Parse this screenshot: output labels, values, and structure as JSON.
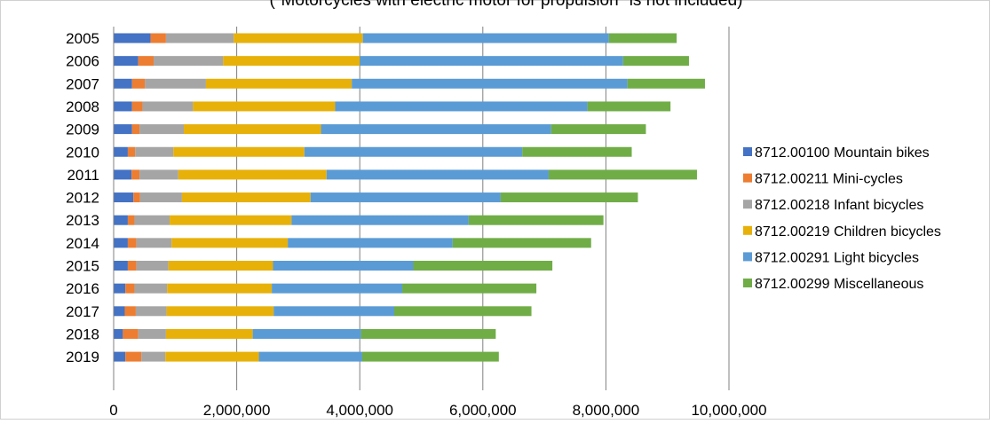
{
  "chart_data": {
    "type": "bar",
    "orientation": "horizontal",
    "stacked": true,
    "title": "(\"Motorcycles with electric motor for propulsion\" is not included)",
    "xlabel": "",
    "ylabel": "",
    "xlim": [
      0,
      10000000
    ],
    "x_ticks": [
      "0",
      "2,000,000",
      "4,000,000",
      "6,000,000",
      "8,000,000",
      "10,000,000"
    ],
    "grid": "vertical",
    "legend_position": "right",
    "categories": [
      "2005",
      "2006",
      "2007",
      "2008",
      "2009",
      "2010",
      "2011",
      "2012",
      "2013",
      "2014",
      "2015",
      "2016",
      "2017",
      "2018",
      "2019"
    ],
    "series": [
      {
        "name": "8712.00100 Mountain bikes",
        "color": "#4472C4",
        "values": [
          600000,
          400000,
          300000,
          300000,
          300000,
          230000,
          290000,
          320000,
          230000,
          230000,
          230000,
          190000,
          180000,
          150000,
          190000
        ]
      },
      {
        "name": "8712.00211 Mini-cycles",
        "color": "#ED7D31",
        "values": [
          250000,
          250000,
          210000,
          170000,
          120000,
          120000,
          130000,
          110000,
          110000,
          140000,
          140000,
          150000,
          180000,
          250000,
          260000
        ]
      },
      {
        "name": "8712.00218 Infant bicycles",
        "color": "#A5A5A5",
        "values": [
          1100000,
          1130000,
          990000,
          820000,
          720000,
          620000,
          630000,
          680000,
          570000,
          570000,
          520000,
          530000,
          500000,
          450000,
          390000
        ]
      },
      {
        "name": "8712.00219 Children bicycles",
        "color": "#E7B10A",
        "values": [
          2100000,
          2220000,
          2370000,
          2310000,
          2230000,
          2130000,
          2410000,
          2090000,
          1980000,
          1890000,
          1700000,
          1700000,
          1740000,
          1410000,
          1520000
        ]
      },
      {
        "name": "8712.00291 Light bicycles",
        "color": "#5B9BD5",
        "values": [
          4000000,
          4280000,
          4480000,
          4100000,
          3740000,
          3540000,
          3610000,
          3090000,
          2880000,
          2680000,
          2280000,
          2120000,
          1960000,
          1760000,
          1680000
        ]
      },
      {
        "name": "8712.00299 Miscellaneous",
        "color": "#70AD47",
        "values": [
          1100000,
          1070000,
          1260000,
          1350000,
          1540000,
          1780000,
          2410000,
          2230000,
          2190000,
          2250000,
          2260000,
          2180000,
          2230000,
          2190000,
          2220000
        ]
      }
    ]
  }
}
